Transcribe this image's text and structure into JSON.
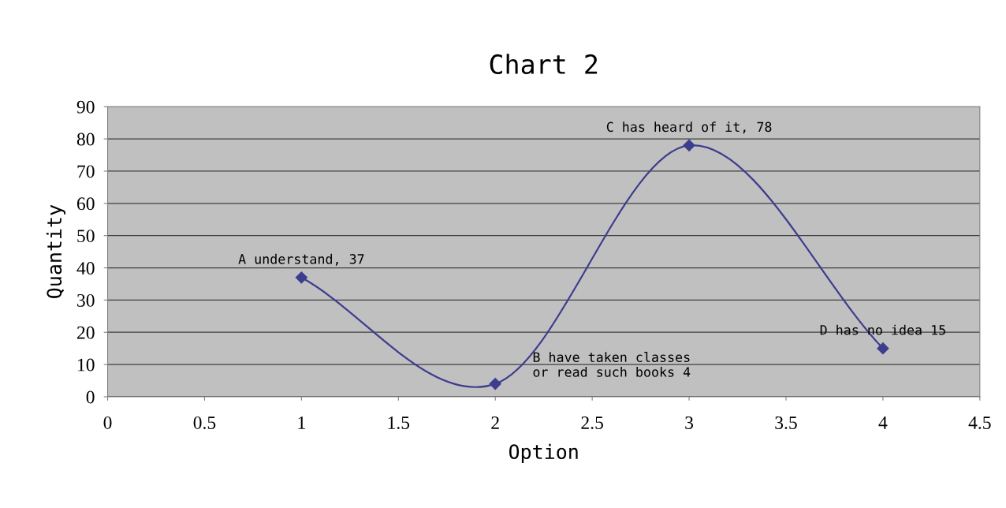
{
  "chart_data": {
    "type": "line",
    "title": "Chart 2",
    "xlabel": "Option",
    "ylabel": "Quantity",
    "x": [
      1,
      2,
      3,
      4
    ],
    "series": [
      {
        "color": "#3d3d8f",
        "values": [
          37,
          4,
          78,
          15
        ]
      }
    ],
    "xlim": [
      0,
      4.5
    ],
    "xticks": [
      0,
      0.5,
      1,
      1.5,
      2,
      2.5,
      3,
      3.5,
      4,
      4.5
    ],
    "ylim": [
      0,
      90
    ],
    "yticks": [
      0,
      10,
      20,
      30,
      40,
      50,
      60,
      70,
      80,
      90
    ],
    "grid": "y",
    "marker": "diamond",
    "line_style": "solid",
    "annotations": [
      {
        "text": "A understand, 37",
        "x": 1,
        "y": 37
      },
      {
        "text": "B have taken classes\nor read such books 4",
        "x": 2,
        "y": 4
      },
      {
        "text": "C has heard of it, 78",
        "x": 3,
        "y": 78
      },
      {
        "text": "D has no idea 15",
        "x": 4,
        "y": 15
      }
    ]
  }
}
